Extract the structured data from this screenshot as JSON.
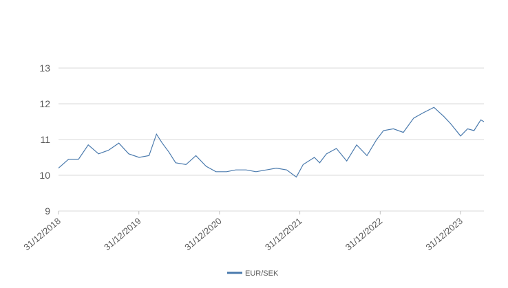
{
  "chart_data": {
    "type": "line",
    "x": [
      "2018-12-31",
      "2019-02-15",
      "2019-04-01",
      "2019-05-15",
      "2019-07-01",
      "2019-08-15",
      "2019-10-01",
      "2019-11-15",
      "2020-01-01",
      "2020-02-15",
      "2020-03-20",
      "2020-04-15",
      "2020-05-15",
      "2020-06-15",
      "2020-08-01",
      "2020-09-15",
      "2020-11-01",
      "2020-12-15",
      "2021-02-01",
      "2021-03-15",
      "2021-05-01",
      "2021-06-15",
      "2021-08-01",
      "2021-09-15",
      "2021-11-01",
      "2021-12-15",
      "2022-01-15",
      "2022-03-07",
      "2022-03-31",
      "2022-05-01",
      "2022-06-15",
      "2022-08-01",
      "2022-09-15",
      "2022-11-01",
      "2022-12-15",
      "2023-01-15",
      "2023-03-01",
      "2023-04-15",
      "2023-06-01",
      "2023-07-15",
      "2023-09-01",
      "2023-10-15",
      "2023-11-15",
      "2023-12-31",
      "2024-02-01",
      "2024-03-01",
      "2024-04-01",
      "2024-04-15"
    ],
    "series": [
      {
        "name": "EUR/SEK",
        "color": "#4a7aad",
        "values": [
          10.2,
          10.45,
          10.45,
          10.85,
          10.6,
          10.7,
          10.9,
          10.6,
          10.5,
          10.55,
          11.15,
          10.9,
          10.65,
          10.35,
          10.3,
          10.55,
          10.25,
          10.1,
          10.1,
          10.15,
          10.15,
          10.1,
          10.15,
          10.2,
          10.15,
          9.95,
          10.3,
          10.5,
          10.35,
          10.6,
          10.75,
          10.4,
          10.85,
          10.55,
          11.0,
          11.25,
          11.3,
          11.2,
          11.6,
          11.75,
          11.9,
          11.65,
          11.45,
          11.1,
          11.3,
          11.25,
          11.55,
          11.5
        ]
      }
    ],
    "xlim": [
      "2018-12-31",
      "2024-04-15"
    ],
    "xticks": [
      {
        "value": "2018-12-31",
        "label": "31/12/2018"
      },
      {
        "value": "2019-12-31",
        "label": "31/12/2019"
      },
      {
        "value": "2020-12-31",
        "label": "31/12/2020"
      },
      {
        "value": "2021-12-31",
        "label": "31/12/2021"
      },
      {
        "value": "2022-12-31",
        "label": "31/12/2022"
      },
      {
        "value": "2023-12-31",
        "label": "31/12/2023"
      }
    ],
    "ylim": [
      9,
      13
    ],
    "yticks": [
      9,
      10,
      11,
      12,
      13
    ],
    "grid": true,
    "legend": "bottom"
  }
}
